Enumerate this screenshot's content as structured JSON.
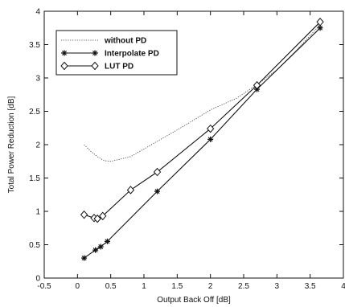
{
  "chart_data": {
    "type": "line",
    "xlabel": "Output Back Off [dB]",
    "ylabel": "Total Power Reduction [dB]",
    "xlim": [
      -0.5,
      4
    ],
    "ylim": [
      0,
      4
    ],
    "x_ticks": [
      "-0.5",
      "0",
      "0.5",
      "1",
      "1.5",
      "2",
      "2.5",
      "3",
      "3.5",
      "4"
    ],
    "y_ticks": [
      "0",
      "0.5",
      "1",
      "1.5",
      "2",
      "2.5",
      "3",
      "3.5",
      "4"
    ],
    "grid": false,
    "legend_position": "top-left",
    "series": [
      {
        "name": "without PD",
        "style": "dotted",
        "marker": "none",
        "x": [
          0.1,
          0.2,
          0.3,
          0.4,
          0.5,
          0.8,
          1.2,
          1.6,
          2.0,
          2.4,
          2.7,
          3.0,
          3.3,
          3.65
        ],
        "y": [
          2.0,
          1.9,
          1.82,
          1.76,
          1.75,
          1.82,
          2.05,
          2.28,
          2.52,
          2.7,
          2.9,
          3.12,
          3.42,
          3.8
        ]
      },
      {
        "name": "Interpolate PD",
        "style": "solid",
        "marker": "star",
        "x": [
          0.1,
          0.27,
          0.35,
          0.45,
          1.2,
          2.0,
          2.7,
          3.65
        ],
        "y": [
          0.3,
          0.42,
          0.47,
          0.55,
          1.3,
          2.08,
          2.83,
          3.75
        ]
      },
      {
        "name": "LUT PD",
        "style": "solid",
        "marker": "diamond",
        "x": [
          0.1,
          0.25,
          0.3,
          0.38,
          0.8,
          1.2,
          2.0,
          2.7,
          3.65
        ],
        "y": [
          0.95,
          0.9,
          0.89,
          0.93,
          1.32,
          1.59,
          2.24,
          2.89,
          3.84
        ]
      }
    ]
  }
}
